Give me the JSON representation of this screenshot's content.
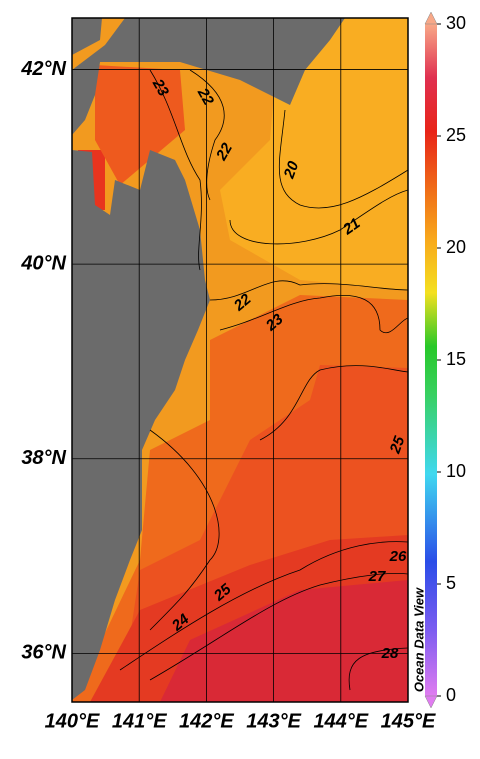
{
  "map": {
    "lon_ticks": [
      {
        "value": 140,
        "label": "140°E"
      },
      {
        "value": 141,
        "label": "141°E"
      },
      {
        "value": 142,
        "label": "142°E"
      },
      {
        "value": 143,
        "label": "143°E"
      },
      {
        "value": 144,
        "label": "144°E"
      },
      {
        "value": 145,
        "label": "145°E"
      }
    ],
    "lat_ticks": [
      {
        "value": 36,
        "label": "36°N"
      },
      {
        "value": 38,
        "label": "38°N"
      },
      {
        "value": 40,
        "label": "40°N"
      },
      {
        "value": 42,
        "label": "42°N"
      }
    ],
    "lonlim": [
      140,
      145
    ],
    "latlim": [
      35.5,
      42.53
    ],
    "colorbar": {
      "range": [
        0,
        30
      ],
      "ticks": [
        0,
        5,
        10,
        15,
        20,
        25,
        30
      ]
    },
    "contour_labels": [
      23,
      22,
      22,
      20,
      21,
      22,
      23,
      25,
      26,
      27,
      28,
      24,
      25
    ],
    "watermark": "Ocean Data View"
  }
}
